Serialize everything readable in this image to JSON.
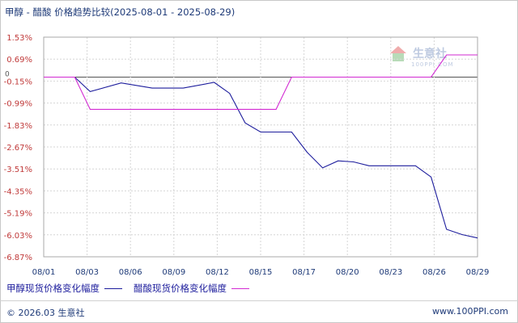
{
  "header": {
    "title": "甲醇 - 醋酸 价格趋势比较",
    "date_range": "(2025-08-01 - 2025-08-29)"
  },
  "watermark": {
    "name": "生意社",
    "site": "100PPI.COM",
    "icon": "house-logo-icon"
  },
  "footer": {
    "copyright": "© 2026.03 生意社",
    "site": "www.100PPI.com"
  },
  "chart_data": {
    "type": "line",
    "title": "甲醇 - 醋酸 价格趋势比较",
    "xlabel": "",
    "ylabel": "",
    "ylim": [
      -6.87,
      1.53
    ],
    "y_ticks": [
      "1.53%",
      "0.69%",
      "-0.15%",
      "-0.99%",
      "-1.83%",
      "-2.67%",
      "-3.51%",
      "-4.35%",
      "-5.19%",
      "-6.03%",
      "-6.87%"
    ],
    "zero_label": "0",
    "x_tick_labels": [
      "08/01",
      "08/03",
      "08/06",
      "08/09",
      "08/12",
      "08/15",
      "08/17",
      "08/20",
      "08/23",
      "08/26",
      "08/29"
    ],
    "x_range": [
      "2025-08-01",
      "2025-08-29"
    ],
    "grid": true,
    "legend_placement": "bottom-left",
    "series": [
      {
        "name": "甲醇现货价格变化幅度",
        "color": "#1c1c9c",
        "points": [
          [
            "2025-08-01",
            0.0
          ],
          [
            "2025-08-02",
            0.0
          ],
          [
            "2025-08-03",
            0.0
          ],
          [
            "2025-08-04",
            -0.55
          ],
          [
            "2025-08-06",
            -0.22
          ],
          [
            "2025-08-08",
            -0.42
          ],
          [
            "2025-08-10",
            -0.42
          ],
          [
            "2025-08-12",
            -0.2
          ],
          [
            "2025-08-13",
            -0.62
          ],
          [
            "2025-08-14",
            -1.75
          ],
          [
            "2025-08-15",
            -2.1
          ],
          [
            "2025-08-17",
            -2.1
          ],
          [
            "2025-08-18",
            -2.87
          ],
          [
            "2025-08-19",
            -3.47
          ],
          [
            "2025-08-20",
            -3.2
          ],
          [
            "2025-08-21",
            -3.24
          ],
          [
            "2025-08-22",
            -3.39
          ],
          [
            "2025-08-25",
            -3.39
          ],
          [
            "2025-08-26",
            -3.82
          ],
          [
            "2025-08-27",
            -5.82
          ],
          [
            "2025-08-28",
            -6.02
          ],
          [
            "2025-08-29",
            -6.15
          ]
        ]
      },
      {
        "name": "醋酸现货价格变化幅度",
        "color": "#d22ad2",
        "points": [
          [
            "2025-08-01",
            0.0
          ],
          [
            "2025-08-02",
            0.0
          ],
          [
            "2025-08-03",
            0.0
          ],
          [
            "2025-08-04",
            -1.23
          ],
          [
            "2025-08-16",
            -1.23
          ],
          [
            "2025-08-17",
            0.0
          ],
          [
            "2025-08-26",
            0.0
          ],
          [
            "2025-08-27",
            0.85
          ],
          [
            "2025-08-29",
            0.85
          ]
        ]
      }
    ]
  }
}
